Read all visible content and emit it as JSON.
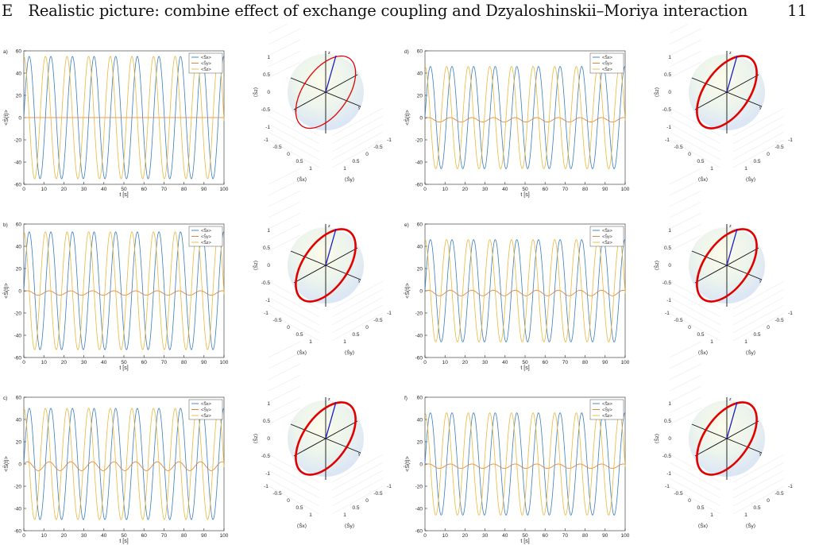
{
  "header": {
    "title": "E Realistic picture: combine effect of exchange coupling and Dzyaloshinskii–Moriya interaction",
    "page_number": "11"
  },
  "colors": {
    "sx": "#3a7ebf",
    "sy": "#e07a28",
    "sz": "#e8b83c",
    "ellipse": "#e00000",
    "bloch_vector": "#1a1acc"
  },
  "time_axis": {
    "xlabel": "t [s]",
    "xticks": [
      "0",
      "10",
      "20",
      "30",
      "40",
      "50",
      "60",
      "70",
      "80",
      "90",
      "100"
    ],
    "yticks": [
      "60",
      "40",
      "20",
      "0",
      "-20",
      "-40",
      "-60"
    ]
  },
  "sphere_axis": {
    "zlabel": "⟨Ŝz⟩",
    "xlabel": "⟨Ŝx⟩",
    "ylabel": "⟨Ŝy⟩",
    "zticks": [
      "1",
      "0.5",
      "0",
      "-0.5",
      "-1"
    ],
    "xticks": [
      "-1",
      "-0.5",
      "0",
      "0.5",
      "1"
    ],
    "yticks": [
      "-1",
      "-0.5",
      "0",
      "0.5",
      "1"
    ],
    "axis_x": "x",
    "axis_y": "y",
    "axis_z": "z"
  },
  "legend": [
    "<Ŝx>",
    "<Ŝy>",
    "<Ŝz>"
  ],
  "chart_data": [
    {
      "type": "line",
      "panel": "a)",
      "ylabel": "<Ŝ(t)>",
      "xlabel": "t [s]",
      "xlim": [
        0,
        100
      ],
      "ylim": [
        -60,
        60
      ],
      "series": [
        {
          "name": "<Ŝx>",
          "amplitude": 55,
          "period": 10.8,
          "phase": 0
        },
        {
          "name": "<Ŝy>",
          "amplitude": 0,
          "period": 10.8,
          "phase": 0
        },
        {
          "name": "<Ŝz>",
          "amplitude": 55,
          "period": 10.8,
          "phase": 1.57
        }
      ]
    },
    {
      "type": "line",
      "panel": "b)",
      "ylabel": "<Ŝ(t)>",
      "xlabel": "t [s]",
      "xlim": [
        0,
        100
      ],
      "ylim": [
        -60,
        60
      ],
      "series": [
        {
          "name": "<Ŝx>",
          "amplitude": 53,
          "period": 10.8,
          "phase": 0
        },
        {
          "name": "<Ŝy>",
          "amplitude": 2,
          "period": 10.8,
          "phase": 0.5
        },
        {
          "name": "<Ŝz>",
          "amplitude": 53,
          "period": 10.8,
          "phase": 1.57
        }
      ]
    },
    {
      "type": "line",
      "panel": "c)",
      "ylabel": "<Ŝ(t)>",
      "xlabel": "t [s]",
      "xlim": [
        0,
        100
      ],
      "ylim": [
        -60,
        60
      ],
      "series": [
        {
          "name": "<Ŝx>",
          "amplitude": 50,
          "period": 10.8,
          "phase": 0
        },
        {
          "name": "<Ŝy>",
          "amplitude": 4,
          "period": 10.8,
          "phase": 0.5
        },
        {
          "name": "<Ŝz>",
          "amplitude": 50,
          "period": 10.8,
          "phase": 1.57
        }
      ]
    },
    {
      "type": "line",
      "panel": "d)",
      "ylabel": "<Ŝ(t)>",
      "xlabel": "t [s]",
      "xlim": [
        0,
        100
      ],
      "ylim": [
        -60,
        60
      ],
      "series": [
        {
          "name": "<Ŝx>",
          "amplitude": 46,
          "period": 10.8,
          "phase": 0
        },
        {
          "name": "<Ŝy>",
          "amplitude": 2,
          "period": 10.8,
          "phase": 0.5
        },
        {
          "name": "<Ŝz>",
          "amplitude": 46,
          "period": 10.8,
          "phase": 1.57
        }
      ]
    },
    {
      "type": "line",
      "panel": "e)",
      "ylabel": "<Ŝ(t)>",
      "xlabel": "t [s]",
      "xlim": [
        0,
        100
      ],
      "ylim": [
        -60,
        60
      ],
      "series": [
        {
          "name": "<Ŝx>",
          "amplitude": 46,
          "period": 10.8,
          "phase": 0
        },
        {
          "name": "<Ŝy>",
          "amplitude": 2.5,
          "period": 10.8,
          "phase": 0.5
        },
        {
          "name": "<Ŝz>",
          "amplitude": 46,
          "period": 10.8,
          "phase": 1.57
        }
      ]
    },
    {
      "type": "line",
      "panel": "f)",
      "ylabel": "<Ŝ(t)>",
      "xlabel": "t [s]",
      "xlim": [
        0,
        100
      ],
      "ylim": [
        -60,
        60
      ],
      "series": [
        {
          "name": "<Ŝx>",
          "amplitude": 46,
          "period": 10.8,
          "phase": 0
        },
        {
          "name": "<Ŝy>",
          "amplitude": 2,
          "period": 10.8,
          "phase": 0.5
        },
        {
          "name": "<Ŝz>",
          "amplitude": 46,
          "period": 10.8,
          "phase": 1.57
        }
      ]
    }
  ]
}
